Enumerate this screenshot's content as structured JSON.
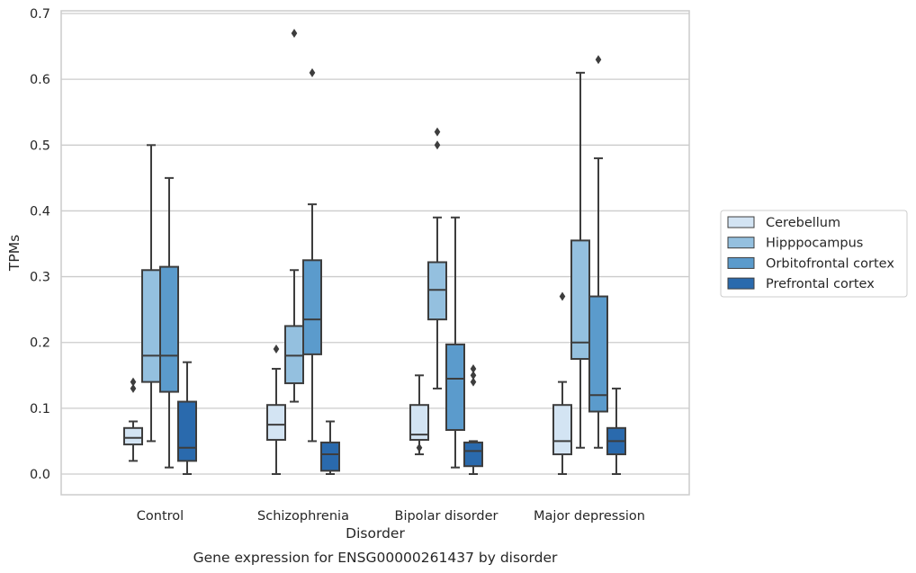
{
  "chart_data": {
    "type": "boxplot",
    "title": "",
    "caption": "Gene expression for ENSG00000261437 by disorder",
    "xlabel": "Disorder",
    "ylabel": "TPMs",
    "ylim": [
      -0.032,
      0.705
    ],
    "yticks": [
      0.0,
      0.1,
      0.2,
      0.3,
      0.4,
      0.5,
      0.6,
      0.7
    ],
    "ytick_labels": [
      "0.0",
      "0.1",
      "0.2",
      "0.3",
      "0.4",
      "0.5",
      "0.6",
      "0.7"
    ],
    "grid": "horizontal",
    "legend_position": "right",
    "categories": [
      "Control",
      "Schizophrenia",
      "Bipolar disorder",
      "Major depression"
    ],
    "series": [
      {
        "name": "Cerebellum",
        "color": "#d3e4f3",
        "boxes": [
          {
            "whisker_low": 0.02,
            "q1": 0.045,
            "median": 0.055,
            "q3": 0.07,
            "whisker_high": 0.08,
            "outliers": [
              0.13,
              0.14
            ]
          },
          {
            "whisker_low": 0.0,
            "q1": 0.052,
            "median": 0.075,
            "q3": 0.105,
            "whisker_high": 0.16,
            "outliers": [
              0.19
            ]
          },
          {
            "whisker_low": 0.03,
            "q1": 0.052,
            "median": 0.06,
            "q3": 0.105,
            "whisker_high": 0.15,
            "outliers": [
              0.04
            ]
          },
          {
            "whisker_low": 0.0,
            "q1": 0.03,
            "median": 0.05,
            "q3": 0.105,
            "whisker_high": 0.14,
            "outliers": [
              0.27
            ]
          }
        ]
      },
      {
        "name": "Hipppocampus",
        "color": "#94c0df",
        "boxes": [
          {
            "whisker_low": 0.05,
            "q1": 0.14,
            "median": 0.18,
            "q3": 0.31,
            "whisker_high": 0.5,
            "outliers": []
          },
          {
            "whisker_low": 0.11,
            "q1": 0.138,
            "median": 0.18,
            "q3": 0.225,
            "whisker_high": 0.31,
            "outliers": [
              0.67
            ]
          },
          {
            "whisker_low": 0.13,
            "q1": 0.235,
            "median": 0.28,
            "q3": 0.322,
            "whisker_high": 0.39,
            "outliers": [
              0.5,
              0.52
            ]
          },
          {
            "whisker_low": 0.04,
            "q1": 0.175,
            "median": 0.2,
            "q3": 0.355,
            "whisker_high": 0.61,
            "outliers": []
          }
        ]
      },
      {
        "name": "Orbitofrontal cortex",
        "color": "#5b9bcc",
        "boxes": [
          {
            "whisker_low": 0.01,
            "q1": 0.125,
            "median": 0.18,
            "q3": 0.315,
            "whisker_high": 0.45,
            "outliers": []
          },
          {
            "whisker_low": 0.05,
            "q1": 0.182,
            "median": 0.235,
            "q3": 0.325,
            "whisker_high": 0.41,
            "outliers": [
              0.61
            ]
          },
          {
            "whisker_low": 0.01,
            "q1": 0.067,
            "median": 0.145,
            "q3": 0.197,
            "whisker_high": 0.39,
            "outliers": []
          },
          {
            "whisker_low": 0.04,
            "q1": 0.095,
            "median": 0.12,
            "q3": 0.27,
            "whisker_high": 0.48,
            "outliers": [
              0.63
            ]
          }
        ]
      },
      {
        "name": "Prefrontal cortex",
        "color": "#2a6aad",
        "boxes": [
          {
            "whisker_low": 0.0,
            "q1": 0.02,
            "median": 0.04,
            "q3": 0.11,
            "whisker_high": 0.17,
            "outliers": []
          },
          {
            "whisker_low": 0.0,
            "q1": 0.005,
            "median": 0.03,
            "q3": 0.048,
            "whisker_high": 0.08,
            "outliers": []
          },
          {
            "whisker_low": 0.0,
            "q1": 0.012,
            "median": 0.035,
            "q3": 0.048,
            "whisker_high": 0.05,
            "outliers": [
              0.14,
              0.15,
              0.16
            ]
          },
          {
            "whisker_low": 0.0,
            "q1": 0.03,
            "median": 0.05,
            "q3": 0.07,
            "whisker_high": 0.13,
            "outliers": []
          }
        ]
      }
    ]
  }
}
